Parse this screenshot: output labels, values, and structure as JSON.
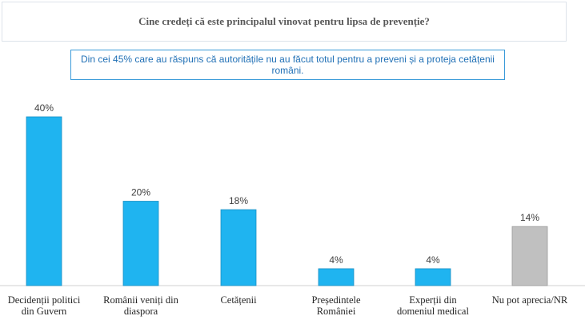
{
  "chart_data": {
    "type": "bar",
    "title": "Cine credeți că este principalul vinovat pentru lipsa de prevenție?",
    "subtitle": "Din cei 45% care au răspuns că autoritățile nu au făcut totul pentru a preveni și a proteja cetățenii români.",
    "categories": [
      [
        "Decidenții politici",
        "din Guvern"
      ],
      [
        "Românii veniți din",
        "diaspora"
      ],
      [
        "Cetățenii"
      ],
      [
        "Președintele",
        "României"
      ],
      [
        "Experții din",
        "domeniul medical"
      ],
      [
        "Nu pot aprecia/NR"
      ]
    ],
    "values": [
      40,
      20,
      18,
      4,
      4,
      14
    ],
    "value_labels": [
      "40%",
      "20%",
      "18%",
      "4%",
      "4%",
      "14%"
    ],
    "colors": [
      "#1fb4f0",
      "#1fb4f0",
      "#1fb4f0",
      "#1fb4f0",
      "#1fb4f0",
      "#c0c0c0"
    ],
    "ylim": [
      0,
      40
    ],
    "grid": false,
    "legend": "none"
  }
}
